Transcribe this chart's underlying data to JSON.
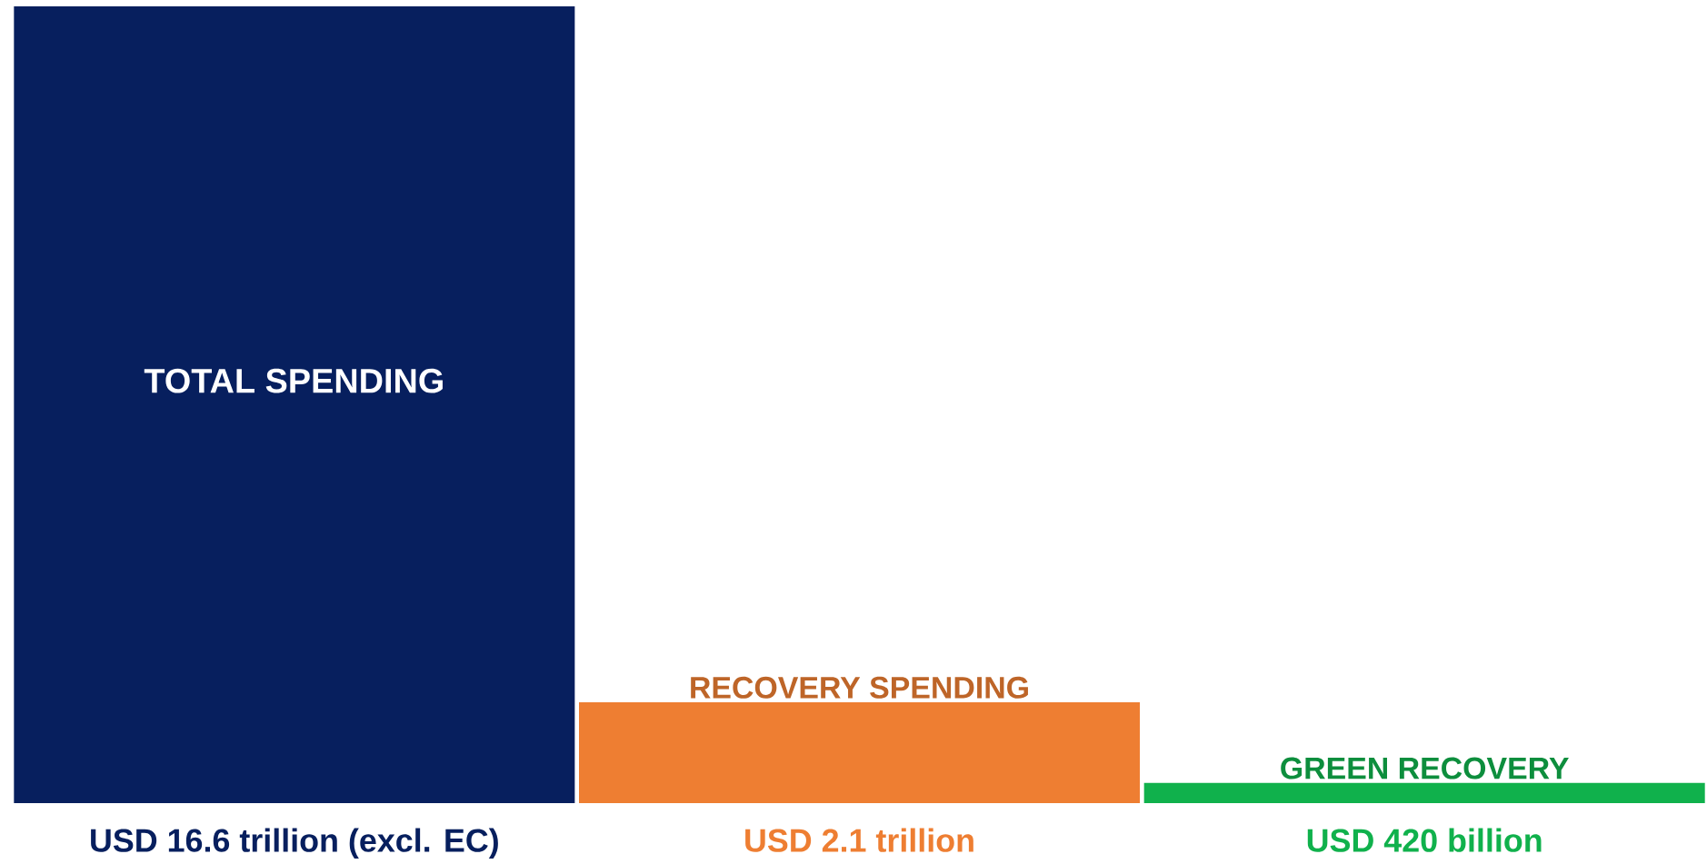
{
  "chart_data": {
    "type": "bar",
    "categories": [
      "TOTAL SPENDING",
      "RECOVERY SPENDING",
      "GREEN RECOVERY"
    ],
    "values": [
      16.6,
      2.1,
      0.42
    ],
    "colors": [
      "#071f5e",
      "#ee7e32",
      "#10b14c"
    ],
    "value_labels": [
      "USD 16.6 trillion (excl. EC)",
      "USD 2.1 trillion",
      "USD 420 billion"
    ]
  }
}
